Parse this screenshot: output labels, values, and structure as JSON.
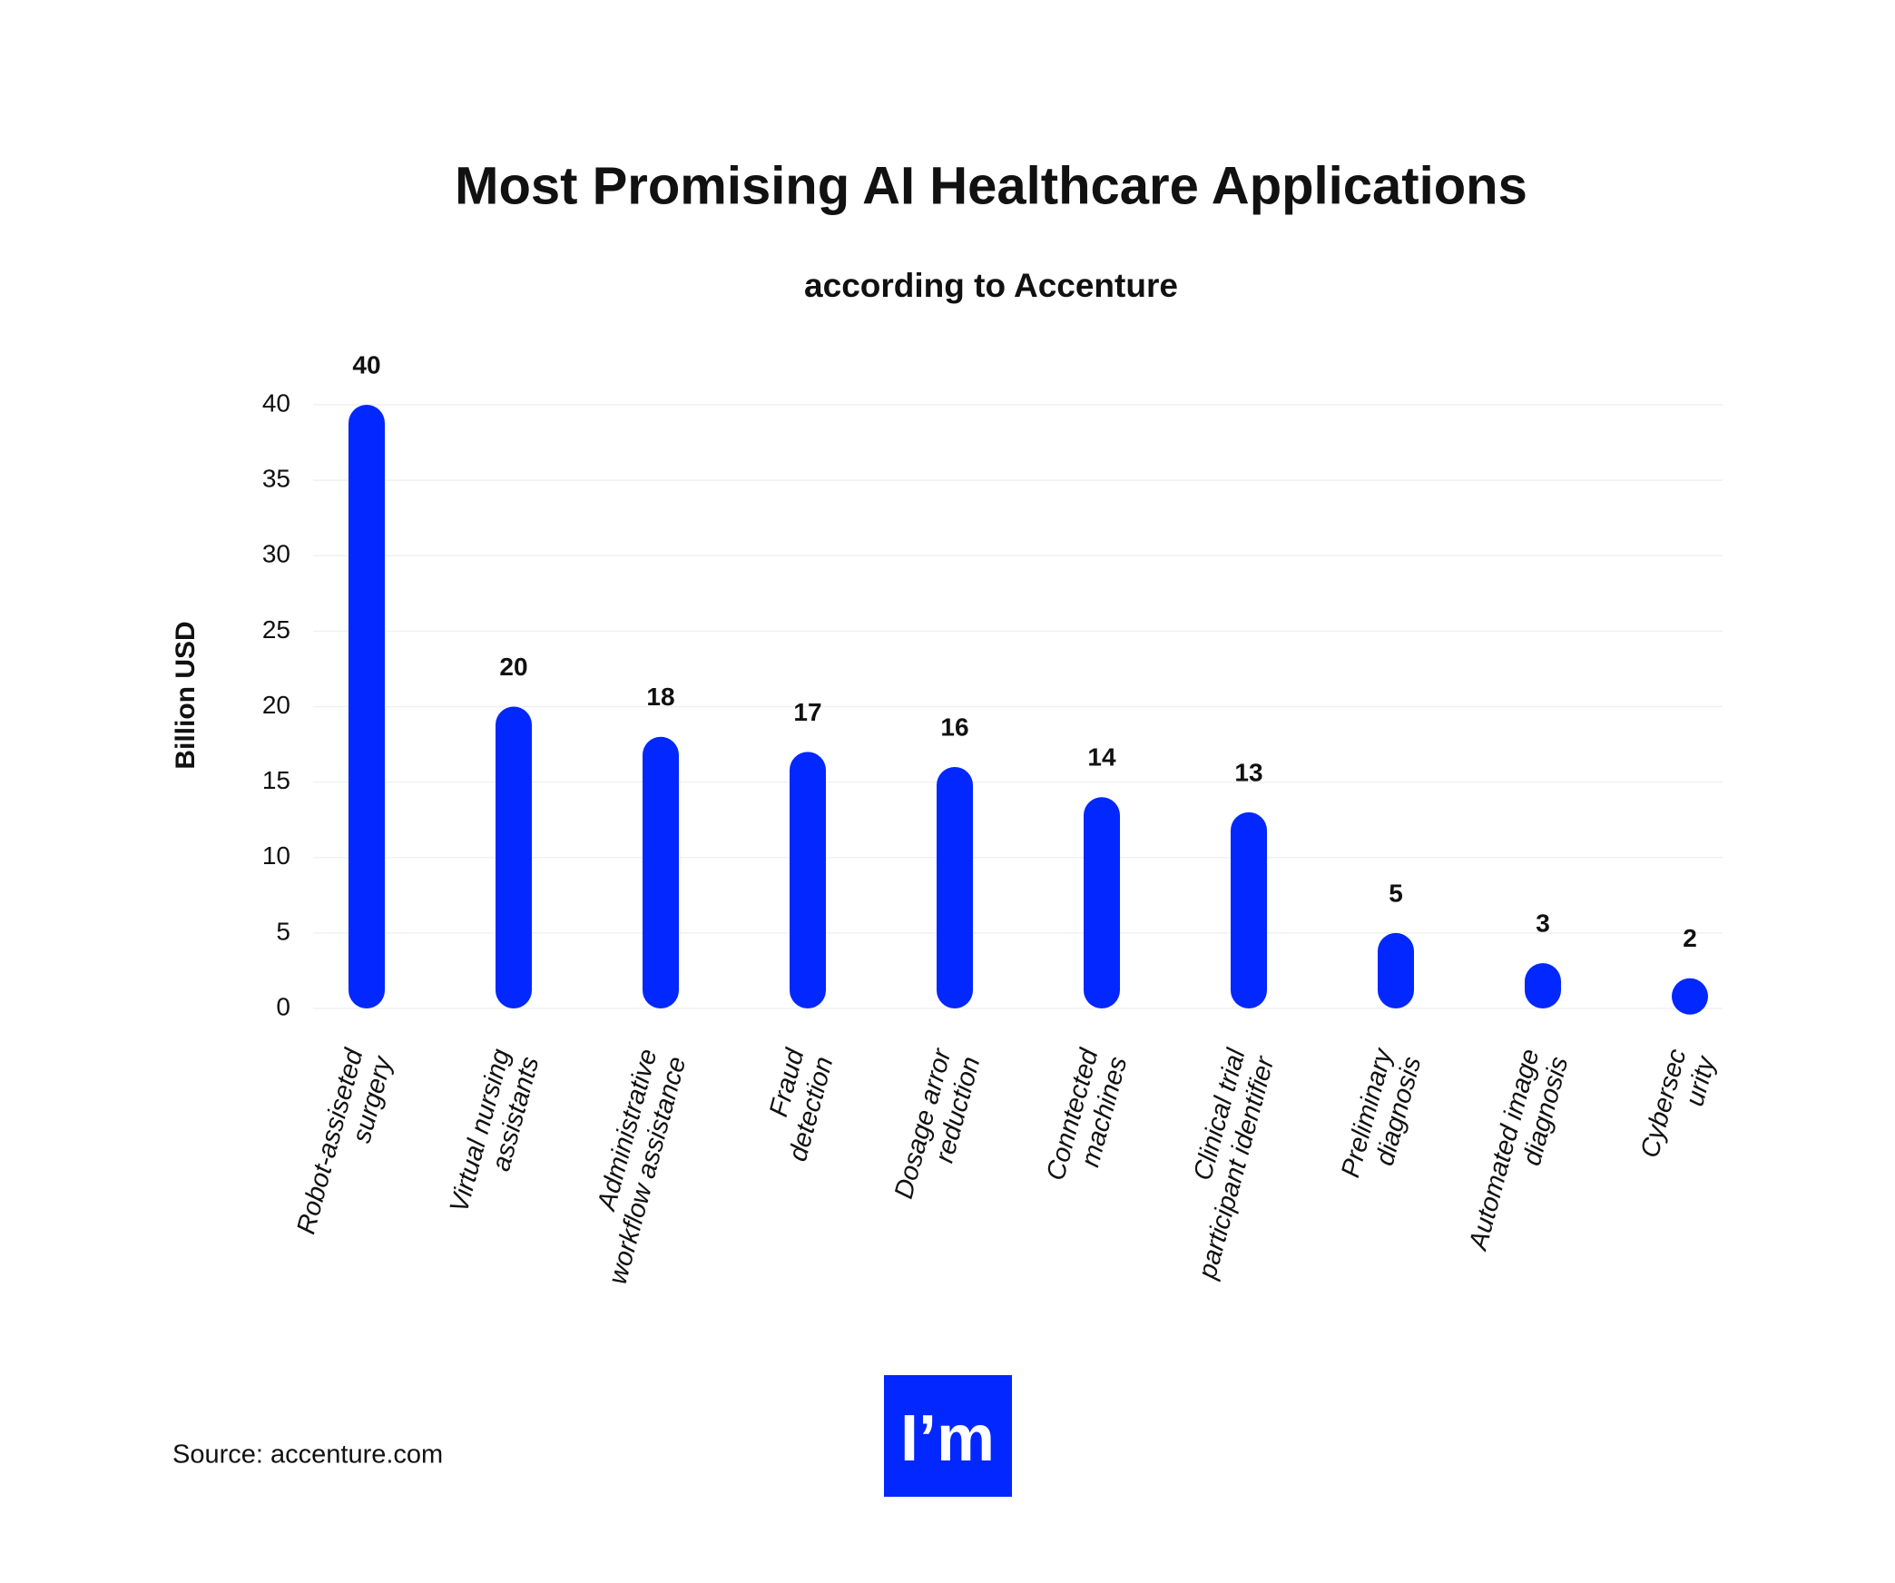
{
  "chart_data": {
    "type": "bar",
    "title": "Most Promising AI Healthcare Applications",
    "subtitle": "according to Accenture",
    "y_label": "Billion USD",
    "categories": [
      "Robot-assiseted\nsurgery",
      "Virtual nursing\nassistants",
      "Administrative\nworkflow assistance",
      "Fraud\ndetection",
      "Dosage arror\nreduction",
      "Conntected\nmachines",
      "Clinical trial\nparticipant identifier",
      "Preliminary\ndiagnosis",
      "Automated image\ndiagnosis",
      "Cybersec\nurity"
    ],
    "values": [
      40,
      20,
      18,
      17,
      16,
      14,
      13,
      5,
      3,
      2
    ],
    "color": "#0327ff",
    "ylim": [
      0,
      40
    ],
    "yticks": [
      0,
      5,
      10,
      15,
      20,
      25,
      30,
      35,
      40
    ],
    "grid": true
  },
  "source": "Source: accenture.com",
  "logo": "I’m"
}
